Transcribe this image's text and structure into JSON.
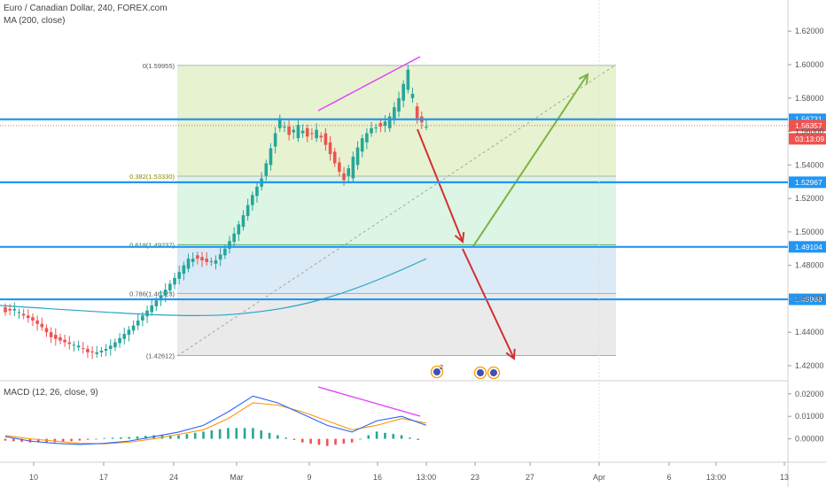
{
  "header": {
    "symbol": "Euro / Canadian Dollar, 240, FOREX.com",
    "ma_label": "MA (200, close)",
    "macd_label": "MACD (12, 26, close, 9)"
  },
  "colors": {
    "level_line": "#2196f3",
    "fib_top": "#e3f0c8",
    "fib_mid": "#d6f3df",
    "fib_blue": "#d3e6f5",
    "fib_gray": "#e6e6e6",
    "up_candle": "#26a69a",
    "down_candle": "#ef5350",
    "ma": "#26a4c8",
    "divergence": "#e040fb",
    "bear_arrow": "#d32f2f",
    "bull_arrow": "#7cb342",
    "macd_line": "#2962ff",
    "signal_line": "#ff9800"
  },
  "chart_data": {
    "type": "candlestick",
    "title": "Euro / Canadian Dollar, 240, FOREX.com",
    "price_axis": {
      "ticks": [
        "1.62000",
        "1.60000",
        "1.58000",
        "1.56000",
        "1.54000",
        "1.52000",
        "1.50000",
        "1.48000",
        "1.46000",
        "1.44000",
        "1.42000"
      ],
      "ylim": [
        1.41,
        1.632
      ]
    },
    "time_axis": {
      "ticks": [
        "10",
        "17",
        "24",
        "Mar",
        "9",
        "16",
        "13:00",
        "23",
        "27",
        "Apr",
        "6",
        "13:00",
        "13"
      ]
    },
    "price_labels": [
      {
        "value": 1.56731,
        "text": "1.56731",
        "kind": "level"
      },
      {
        "value": 1.56357,
        "text": "1.56357",
        "kind": "current"
      },
      {
        "value": 1.55,
        "text": "03:13:09",
        "kind": "countdown"
      },
      {
        "value": 1.52967,
        "text": "1.52967",
        "kind": "level"
      },
      {
        "value": 1.49104,
        "text": "1.49104",
        "kind": "level"
      },
      {
        "value": 1.45968,
        "text": "1.45968",
        "kind": "level"
      }
    ],
    "horizontal_levels": [
      1.56731,
      1.52967,
      1.49104,
      1.45968
    ],
    "fibonacci": [
      {
        "ratio": "0",
        "price": 1.59955,
        "label": "0(1.59955)"
      },
      {
        "ratio": "0.382",
        "price": 1.5333,
        "label": "0.382(1.53330)"
      },
      {
        "ratio": "0.618",
        "price": 1.49237,
        "label": "0.618(1.49237)"
      },
      {
        "ratio": "0.786",
        "price": 1.46323,
        "label": "0.786(1.46323)"
      },
      {
        "ratio": "1",
        "price": 1.42612,
        "label": "(1.42612)"
      }
    ],
    "ohlc_path": [
      [
        1.455,
        1.452
      ],
      [
        1.453,
        1.454
      ],
      [
        1.451,
        1.45
      ],
      [
        1.449,
        1.447
      ],
      [
        1.445,
        1.443
      ],
      [
        1.44,
        1.437
      ],
      [
        1.437,
        1.435
      ],
      [
        1.434,
        1.433
      ],
      [
        1.431,
        1.432
      ],
      [
        1.43,
        1.428
      ],
      [
        1.427,
        1.428
      ],
      [
        1.429,
        1.43
      ],
      [
        1.431,
        1.434
      ],
      [
        1.436,
        1.439
      ],
      [
        1.441,
        1.444
      ],
      [
        1.447,
        1.45
      ],
      [
        1.452,
        1.456
      ],
      [
        1.459,
        1.462
      ],
      [
        1.465,
        1.469
      ],
      [
        1.472,
        1.476
      ],
      [
        1.478,
        1.484
      ],
      [
        1.486,
        1.484
      ],
      [
        1.484,
        1.482
      ],
      [
        1.481,
        1.483
      ],
      [
        1.486,
        1.49
      ],
      [
        1.494,
        1.499
      ],
      [
        1.503,
        1.51
      ],
      [
        1.516,
        1.522
      ],
      [
        1.527,
        1.532
      ],
      [
        1.54,
        1.55
      ],
      [
        1.562,
        1.568
      ],
      [
        1.563,
        1.558
      ],
      [
        1.556,
        1.564
      ],
      [
        1.562,
        1.557
      ],
      [
        1.556,
        1.561
      ],
      [
        1.559,
        1.552
      ],
      [
        1.548,
        1.541
      ],
      [
        1.535,
        1.531
      ],
      [
        1.532,
        1.545
      ],
      [
        1.548,
        1.556
      ],
      [
        1.559,
        1.562
      ],
      [
        1.565,
        1.563
      ],
      [
        1.562,
        1.569
      ],
      [
        1.572,
        1.58
      ],
      [
        1.585,
        1.597
      ],
      [
        1.575,
        1.568
      ],
      [
        1.563,
        1.563
      ]
    ],
    "ma_200": [
      1.452,
      1.451,
      1.45,
      1.45,
      1.451,
      1.453,
      1.456,
      1.46,
      1.466,
      1.472,
      1.478,
      1.484
    ],
    "macd": {
      "zero": 0,
      "ticks": [
        "0.02000",
        "0.01000",
        "0.00000"
      ],
      "ylim": [
        -0.0045,
        0.0215
      ],
      "macd_line": [
        0.001,
        -0.001,
        -0.002,
        -0.0025,
        -0.002,
        -0.001,
        0.001,
        0.003,
        0.006,
        0.012,
        0.019,
        0.016,
        0.011,
        0.006,
        0.003,
        0.008,
        0.01,
        0.006
      ],
      "signal_line": [
        0.0015,
        0.0,
        -0.001,
        -0.002,
        -0.0022,
        -0.0015,
        0.0,
        0.002,
        0.004,
        0.009,
        0.016,
        0.015,
        0.012,
        0.008,
        0.004,
        0.006,
        0.009,
        0.007
      ]
    },
    "divergence_label": "2"
  }
}
